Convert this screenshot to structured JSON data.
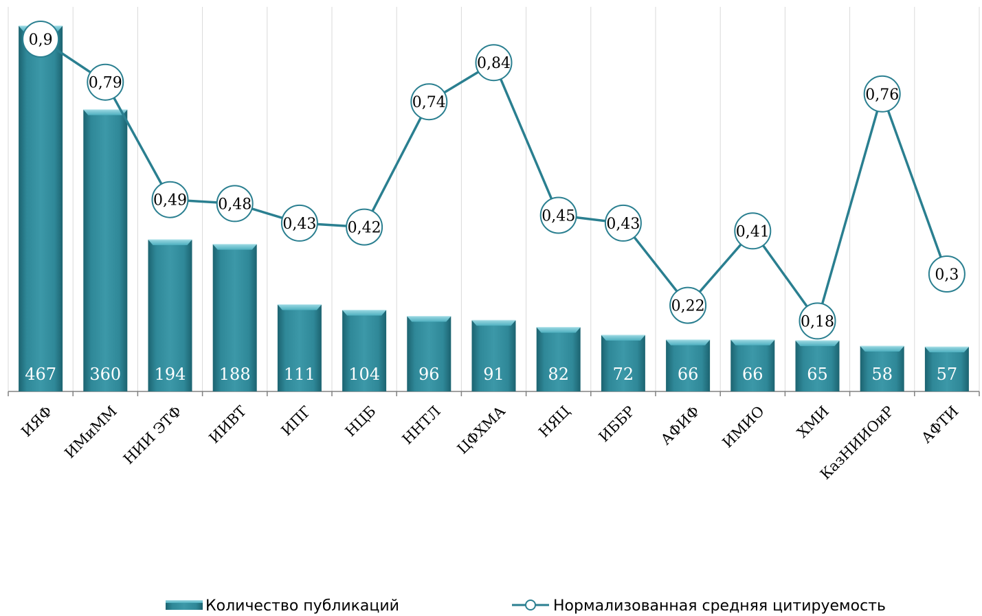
{
  "chart_data": {
    "type": "bar",
    "categories": [
      "ИЯФ",
      "ИМиММ",
      "НИИ ЭТФ",
      "ИИВТ",
      "ИПГ",
      "НЦБ",
      "ННТЛ",
      "ЦФХМА",
      "НЯЦ",
      "ИББР",
      "АФИФ",
      "ИМИО",
      "ХМИ",
      "КазНИИОиР",
      "АФТИ"
    ],
    "series": [
      {
        "name": "Количество публикаций",
        "type": "bar",
        "values": [
          467,
          360,
          194,
          188,
          111,
          104,
          96,
          91,
          82,
          72,
          66,
          66,
          65,
          58,
          57
        ],
        "labels": [
          "467",
          "360",
          "194",
          "188",
          "111",
          "104",
          "96",
          "91",
          "82",
          "72",
          "66",
          "66",
          "65",
          "58",
          "57"
        ]
      },
      {
        "name": "Нормализованная средняя цитируемость",
        "type": "line",
        "values": [
          0.9,
          0.79,
          0.49,
          0.48,
          0.43,
          0.42,
          0.74,
          0.84,
          0.45,
          0.43,
          0.22,
          0.41,
          0.18,
          0.76,
          0.3
        ],
        "labels": [
          "0,9",
          "0,79",
          "0,49",
          "0,48",
          "0,43",
          "0,42",
          "0,74",
          "0,84",
          "0,45",
          "0,43",
          "0,22",
          "0,41",
          "0,18",
          "0,76",
          "0,3"
        ]
      }
    ],
    "y_left_range": [
      0,
      500
    ],
    "y_right_range": [
      0,
      1
    ],
    "grid": "vertical",
    "legend_position": "bottom",
    "colors": {
      "bar": "#2f8898",
      "bar_dark": "#1c6370",
      "bar_light": "#6fc4d1",
      "line": "#2a7f90",
      "grid": "#d9d9d9",
      "axis": "#808080"
    }
  }
}
